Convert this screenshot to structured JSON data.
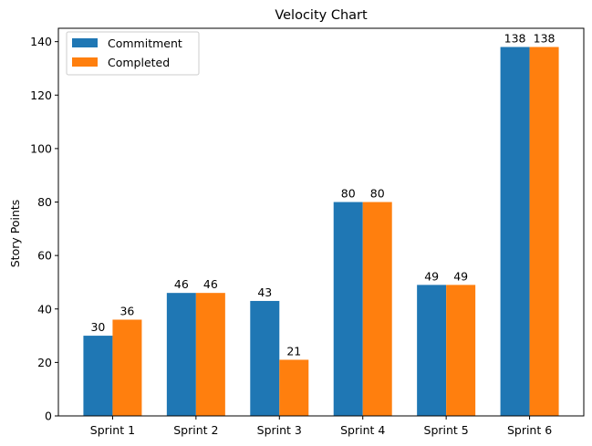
{
  "chart_data": {
    "type": "bar",
    "title": "Velocity Chart",
    "xlabel": "",
    "ylabel": "Story Points",
    "categories": [
      "Sprint 1",
      "Sprint 2",
      "Sprint 3",
      "Sprint 4",
      "Sprint 5",
      "Sprint 6"
    ],
    "series": [
      {
        "name": "Commitment",
        "values": [
          30,
          46,
          43,
          80,
          49,
          138
        ],
        "color": "#1f77b4"
      },
      {
        "name": "Completed",
        "values": [
          36,
          46,
          21,
          80,
          49,
          138
        ],
        "color": "#ff7f0e"
      }
    ],
    "ylim": [
      0,
      145
    ],
    "yticks": [
      0,
      20,
      40,
      60,
      80,
      100,
      120,
      140
    ],
    "grid": false,
    "legend_position": "top-left",
    "data_labels": true
  }
}
